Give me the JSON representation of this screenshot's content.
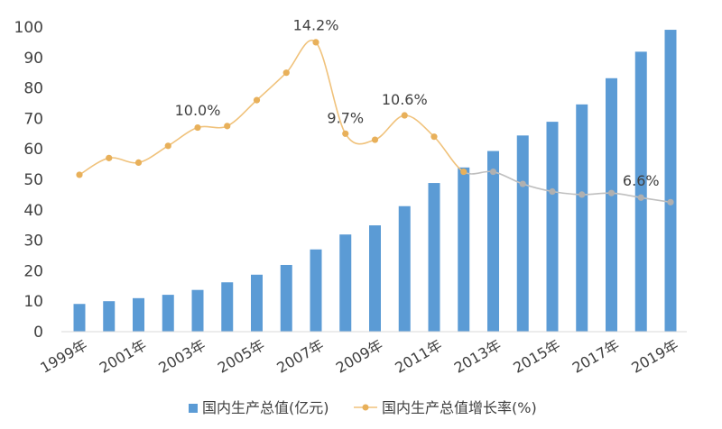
{
  "chart_data": {
    "type": "bar",
    "categories": [
      "1999年",
      "2000年",
      "2001年",
      "2002年",
      "2003年",
      "2004年",
      "2005年",
      "2006年",
      "2007年",
      "2008年",
      "2009年",
      "2010年",
      "2011年",
      "2012年",
      "2013年",
      "2014年",
      "2015年",
      "2016年",
      "2017年",
      "2018年",
      "2019年"
    ],
    "x_tick_labels": [
      "1999年",
      "2001年",
      "2003年",
      "2005年",
      "2007年",
      "2009年",
      "2011年",
      "2013年",
      "2015年",
      "2017年",
      "2019年"
    ],
    "y_ticks": [
      "0",
      "10",
      "20",
      "30",
      "40",
      "50",
      "60",
      "70",
      "80",
      "90",
      "100"
    ],
    "ylim": [
      0,
      100
    ],
    "series": [
      {
        "name": "国内生产总值(亿元)",
        "kind": "bar",
        "color": "#5b9bd5",
        "values": [
          9.1,
          10.0,
          11.0,
          12.1,
          13.7,
          16.2,
          18.7,
          21.9,
          27.0,
          31.9,
          34.9,
          41.2,
          48.8,
          53.9,
          59.3,
          64.4,
          68.9,
          74.6,
          83.2,
          91.9,
          99.1
        ]
      },
      {
        "name": "国内生产总值增长率(%)",
        "kind": "line",
        "color": "#f0c27b",
        "color_late": "#bfbfbf",
        "values": [
          51.5,
          57.0,
          55.5,
          61.0,
          67.0,
          67.5,
          76.0,
          85.0,
          95.0,
          65.0,
          63.0,
          71.0,
          64.0,
          52.5,
          52.5,
          48.5,
          46.0,
          45.0,
          45.5,
          44.0,
          42.5
        ]
      }
    ],
    "annotations": [
      {
        "text": "10.0%",
        "category": "2003年",
        "y": 71
      },
      {
        "text": "14.2%",
        "category": "2007年",
        "y": 99
      },
      {
        "text": "9.7%",
        "category": "2008年",
        "y": 68.5
      },
      {
        "text": "10.6%",
        "category": "2010年",
        "y": 74.5
      },
      {
        "text": "6.6%",
        "category": "2018年",
        "y": 48
      }
    ],
    "legend_position": "bottom"
  }
}
